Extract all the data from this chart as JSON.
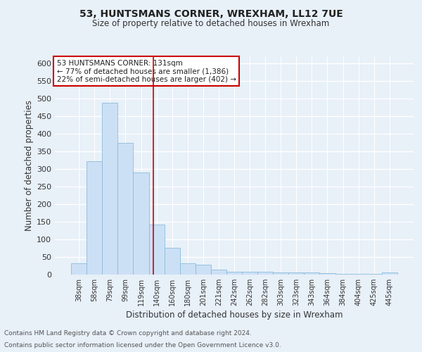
{
  "title1": "53, HUNTSMANS CORNER, WREXHAM, LL12 7UE",
  "title2": "Size of property relative to detached houses in Wrexham",
  "xlabel": "Distribution of detached houses by size in Wrexham",
  "ylabel": "Number of detached properties",
  "footnote1": "Contains HM Land Registry data © Crown copyright and database right 2024.",
  "footnote2": "Contains public sector information licensed under the Open Government Licence v3.0.",
  "annotation_line1": "53 HUNTSMANS CORNER: 131sqm",
  "annotation_line2": "← 77% of detached houses are smaller (1,386)",
  "annotation_line3": "22% of semi-detached houses are larger (402) →",
  "bar_labels": [
    "38sqm",
    "58sqm",
    "79sqm",
    "99sqm",
    "119sqm",
    "140sqm",
    "160sqm",
    "180sqm",
    "201sqm",
    "221sqm",
    "242sqm",
    "262sqm",
    "282sqm",
    "303sqm",
    "323sqm",
    "343sqm",
    "364sqm",
    "384sqm",
    "404sqm",
    "425sqm",
    "445sqm"
  ],
  "bar_values": [
    32,
    322,
    488,
    375,
    290,
    143,
    76,
    32,
    29,
    15,
    9,
    8,
    8,
    7,
    7,
    6,
    5,
    2,
    2,
    2,
    6
  ],
  "bar_color": "#cce0f5",
  "bar_edge_color": "#8bbcdb",
  "vline_x": 4.77,
  "vline_color": "#cc0000",
  "annotation_box_color": "#ffffff",
  "annotation_box_edge": "#cc0000",
  "ylim": [
    0,
    620
  ],
  "yticks": [
    0,
    50,
    100,
    150,
    200,
    250,
    300,
    350,
    400,
    450,
    500,
    550,
    600
  ],
  "bg_color": "#e8f0f8",
  "grid_color": "#ffffff",
  "title1_fontsize": 10,
  "title2_fontsize": 9
}
